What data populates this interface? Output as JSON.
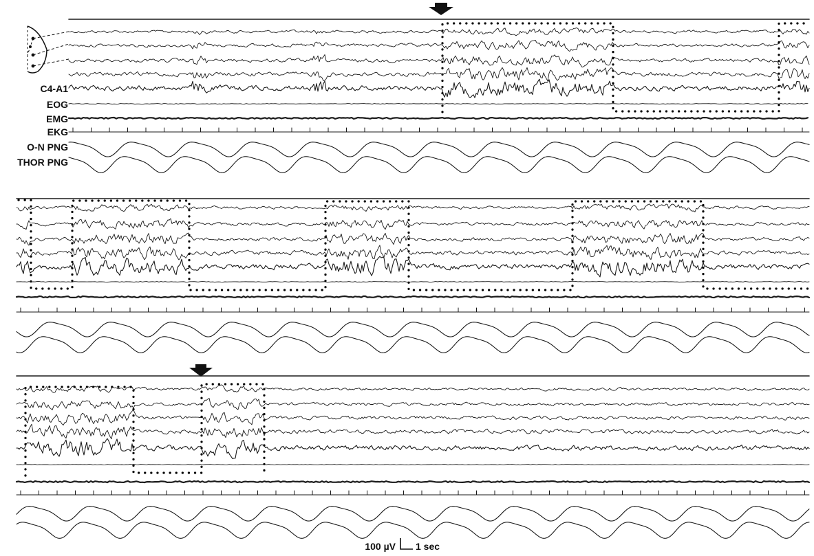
{
  "channels": [
    "C4-A1",
    "EOG",
    "EMG",
    "EKG",
    "O-N PNG",
    "THOR PNG"
  ],
  "calibration": {
    "amplitude": "100 µV",
    "time": "1 sec"
  },
  "icons": {
    "electrode": "electrode-montage-icon",
    "arrow": "arrow-down-icon"
  }
}
